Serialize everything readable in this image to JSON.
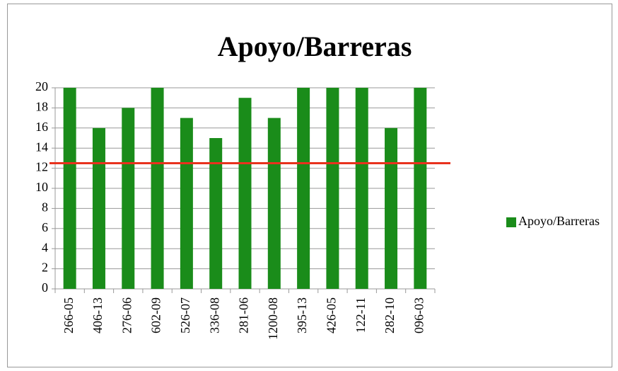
{
  "chart_data": {
    "type": "bar",
    "title": "Apoyo/Barreras",
    "categories": [
      "266-05",
      "406-13",
      "276-06",
      "602-09",
      "526-07",
      "336-08",
      "281-06",
      "1200-08",
      "395-13",
      "426-05",
      "122-11",
      "282-10",
      "096-03"
    ],
    "series": [
      {
        "name": "Apoyo/Barreras",
        "color": "#1a8c1a",
        "values": [
          20,
          16,
          18,
          20,
          17,
          15,
          19,
          17,
          20,
          20,
          20,
          16,
          20
        ]
      }
    ],
    "ylim": [
      0,
      20
    ],
    "yticks": [
      0,
      2,
      4,
      6,
      8,
      10,
      12,
      14,
      16,
      18,
      20
    ],
    "grid": true,
    "legend": "right",
    "reference_line": {
      "value": 12.5,
      "color": "#e8321e"
    }
  }
}
